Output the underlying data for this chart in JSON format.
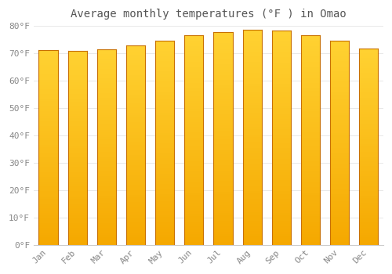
{
  "title": "Average monthly temperatures (°F ) in Omao",
  "months": [
    "Jan",
    "Feb",
    "Mar",
    "Apr",
    "May",
    "Jun",
    "Jul",
    "Aug",
    "Sep",
    "Oct",
    "Nov",
    "Dec"
  ],
  "values": [
    71.1,
    71.0,
    71.6,
    73.0,
    74.5,
    76.5,
    77.7,
    78.6,
    78.4,
    76.5,
    74.5,
    71.8
  ],
  "bar_color_top": "#FFD040",
  "bar_color_bottom": "#F5A800",
  "bar_edge_color": "#C87000",
  "background_color": "#FFFFFF",
  "grid_color": "#E8E8E8",
  "text_color": "#888888",
  "title_color": "#555555",
  "ylim": [
    0,
    80
  ],
  "ytick_step": 10,
  "title_fontsize": 10,
  "tick_fontsize": 8
}
